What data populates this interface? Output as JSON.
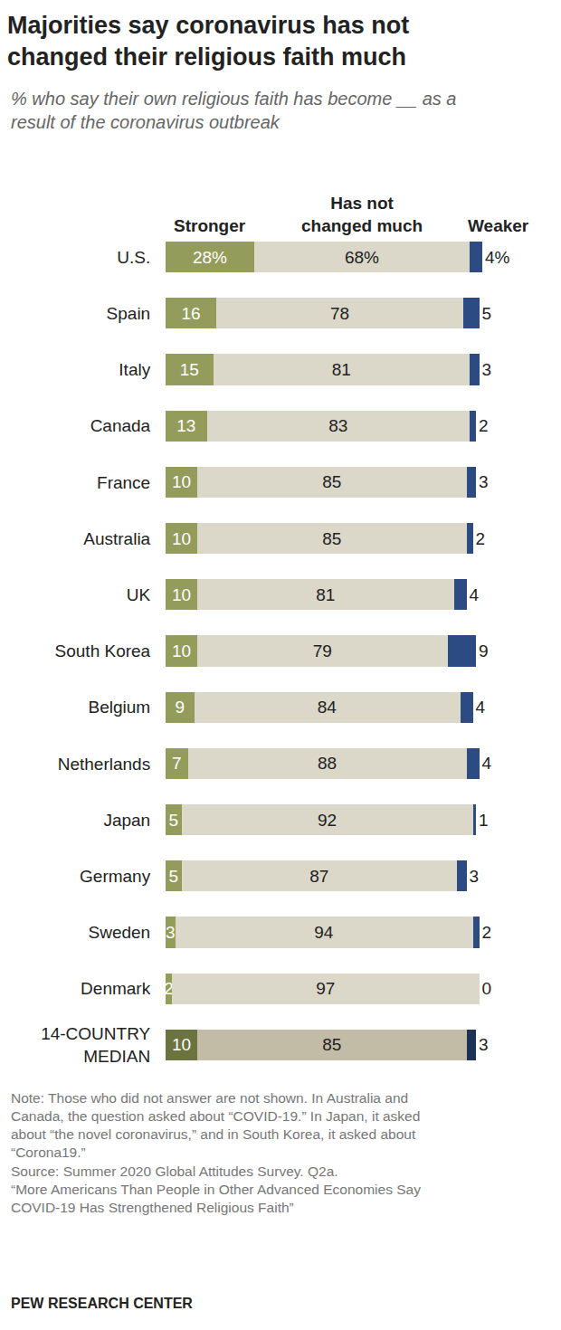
{
  "chart_data": {
    "type": "bar",
    "orientation": "horizontal",
    "stacked": true,
    "data_labels": true,
    "tick_labels": "y",
    "title": "Majorities say coronavirus has not changed their religious faith much",
    "subtitle": "% who say their own religious faith has become __ as a result of the coronavirus outbreak",
    "categories": [
      "U.S.",
      "Spain",
      "Italy",
      "Canada",
      "France",
      "Australia",
      "UK",
      "South Korea",
      "Belgium",
      "Netherlands",
      "Japan",
      "Germany",
      "Sweden",
      "Denmark",
      "14-COUNTRY MEDIAN"
    ],
    "series": [
      {
        "name": "Stronger",
        "colors": [
          "#949c5c",
          "#949c5c",
          "#949c5c",
          "#949c5c",
          "#949c5c",
          "#949c5c",
          "#949c5c",
          "#949c5c",
          "#949c5c",
          "#949c5c",
          "#949c5c",
          "#949c5c",
          "#949c5c",
          "#949c5c",
          "#6b733f"
        ],
        "values": [
          28,
          16,
          15,
          13,
          10,
          10,
          10,
          10,
          9,
          7,
          5,
          5,
          3,
          2,
          10
        ],
        "value_labels": [
          "28%",
          "16",
          "15",
          "13",
          "10",
          "10",
          "10",
          "10",
          "9",
          "7",
          "5",
          "5",
          "3",
          "2",
          "10"
        ]
      },
      {
        "name": "Has not changed much",
        "colors": [
          "#dcd8c9",
          "#dcd8c9",
          "#dcd8c9",
          "#dcd8c9",
          "#dcd8c9",
          "#dcd8c9",
          "#dcd8c9",
          "#dcd8c9",
          "#dcd8c9",
          "#dcd8c9",
          "#dcd8c9",
          "#dcd8c9",
          "#dcd8c9",
          "#dcd8c9",
          "#c2bca6"
        ],
        "values": [
          68,
          78,
          81,
          83,
          85,
          85,
          81,
          79,
          84,
          88,
          92,
          87,
          94,
          97,
          85
        ],
        "value_labels": [
          "68%",
          "78",
          "81",
          "83",
          "85",
          "85",
          "81",
          "79",
          "84",
          "88",
          "92",
          "87",
          "94",
          "97",
          "85"
        ]
      },
      {
        "name": "Weaker",
        "colors": [
          "#2b4b82",
          "#2b4b82",
          "#2b4b82",
          "#2b4b82",
          "#2b4b82",
          "#2b4b82",
          "#2b4b82",
          "#2b4b82",
          "#2b4b82",
          "#2b4b82",
          "#2b4b82",
          "#2b4b82",
          "#2b4b82",
          "#2b4b82",
          "#1d3257"
        ],
        "values": [
          4,
          5,
          3,
          2,
          3,
          2,
          4,
          9,
          4,
          4,
          1,
          3,
          2,
          0,
          3
        ],
        "value_labels": [
          "4%",
          "5",
          "3",
          "2",
          "3",
          "2",
          "4",
          "9",
          "4",
          "4",
          "1",
          "3",
          "2",
          "0",
          "3"
        ]
      }
    ],
    "xlim": [
      0,
      100
    ],
    "notes": [
      "Note: Those who did not answer are not shown. In Australia and",
      "Canada, the question asked about “COVID-19.” In Japan, it asked",
      "about “the novel coronavirus,” and in South Korea, it asked about",
      "“Corona19.”",
      "Source: Summer 2020 Global Attitudes Survey. Q2a.",
      "“More Americans Than People in Other Advanced Economies Say",
      "COVID-19 Has Strengthened Religious Faith”"
    ],
    "credit": "PEW RESEARCH CENTER"
  }
}
